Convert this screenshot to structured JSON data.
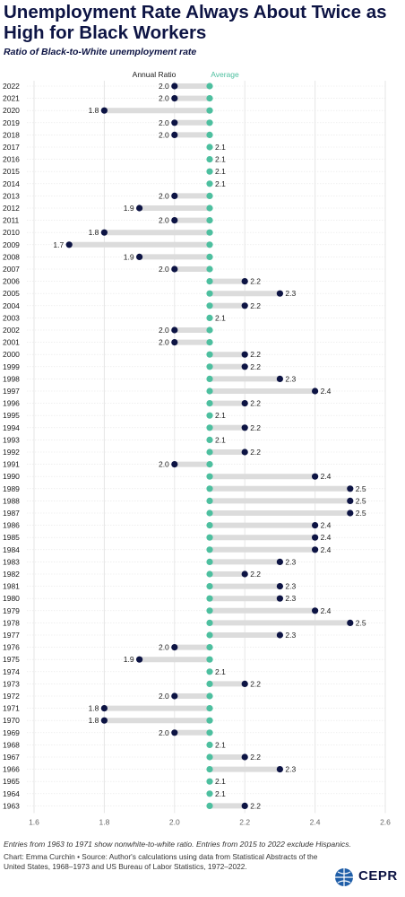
{
  "chart_data": {
    "type": "dot-range",
    "title": "Unemployment Rate Always About Twice as High for Black Workers",
    "subtitle": "Ratio of Black-to-White unemployment rate",
    "legend": [
      {
        "name": "Annual Ratio",
        "color": "#0d1444"
      },
      {
        "name": "Average",
        "color": "#4dbf9f"
      }
    ],
    "average": 2.1,
    "xlim": [
      1.6,
      2.6
    ],
    "xticks": [
      1.6,
      1.8,
      2.0,
      2.2,
      2.4,
      2.6
    ],
    "xtick_labels": [
      "1.6",
      "1.8",
      "2.0",
      "2.2",
      "2.4",
      "2.6"
    ],
    "grid": true,
    "categories": [
      "2022",
      "2021",
      "2020",
      "2019",
      "2018",
      "2017",
      "2016",
      "2015",
      "2014",
      "2013",
      "2012",
      "2011",
      "2010",
      "2009",
      "2008",
      "2007",
      "2006",
      "2005",
      "2004",
      "2003",
      "2002",
      "2001",
      "2000",
      "1999",
      "1998",
      "1997",
      "1996",
      "1995",
      "1994",
      "1993",
      "1992",
      "1991",
      "1990",
      "1989",
      "1988",
      "1987",
      "1986",
      "1985",
      "1984",
      "1983",
      "1982",
      "1981",
      "1980",
      "1979",
      "1978",
      "1977",
      "1976",
      "1975",
      "1974",
      "1973",
      "1972",
      "1971",
      "1970",
      "1969",
      "1968",
      "1967",
      "1966",
      "1965",
      "1964",
      "1963"
    ],
    "values": [
      2.0,
      2.0,
      1.8,
      2.0,
      2.0,
      2.1,
      2.1,
      2.1,
      2.1,
      2.0,
      1.9,
      2.0,
      1.8,
      1.7,
      1.9,
      2.0,
      2.2,
      2.3,
      2.2,
      2.1,
      2.0,
      2.0,
      2.2,
      2.2,
      2.3,
      2.4,
      2.2,
      2.1,
      2.2,
      2.1,
      2.2,
      2.0,
      2.4,
      2.5,
      2.5,
      2.5,
      2.4,
      2.4,
      2.4,
      2.3,
      2.2,
      2.3,
      2.3,
      2.4,
      2.5,
      2.3,
      2.0,
      1.9,
      2.1,
      2.2,
      2.0,
      1.8,
      1.8,
      2.0,
      2.1,
      2.2,
      2.3,
      2.1,
      2.1,
      2.2
    ],
    "value_labels": [
      "2.0",
      "2.0",
      "1.8",
      "2.0",
      "2.0",
      "2.1",
      "2.1",
      "2.1",
      "2.1",
      "2.0",
      "1.9",
      "2.0",
      "1.8",
      "1.7",
      "1.9",
      "2.0",
      "2.2",
      "2.3",
      "2.2",
      "2.1",
      "2.0",
      "2.0",
      "2.2",
      "2.2",
      "2.3",
      "2.4",
      "2.2",
      "2.1",
      "2.2",
      "2.1",
      "2.2",
      "2.0",
      "2.4",
      "2.5",
      "2.5",
      "2.5",
      "2.4",
      "2.4",
      "2.4",
      "2.3",
      "2.2",
      "2.3",
      "2.3",
      "2.4",
      "2.5",
      "2.3",
      "2.0",
      "1.9",
      "2.1",
      "2.2",
      "2.0",
      "1.8",
      "1.8",
      "2.0",
      "2.1",
      "2.2",
      "2.3",
      "2.1",
      "2.1",
      "2.2"
    ]
  },
  "footer": {
    "note": "Entries from 1963 to 1971 show nonwhite-to-white ratio. Entries from 2015 to 2022 exclude Hispanics.",
    "credit": "Chart: Emma Curchin • Source: Author's calculations using data from Statistical Abstracts of the United States, 1968–1973 and US Bureau of Labor Statistics, 1972–2022.",
    "logo_text": "CEPR"
  },
  "colors": {
    "annual": "#0d1444",
    "average": "#4dbf9f",
    "connector": "#dcdcdc",
    "grid": "#e6e6e6"
  }
}
